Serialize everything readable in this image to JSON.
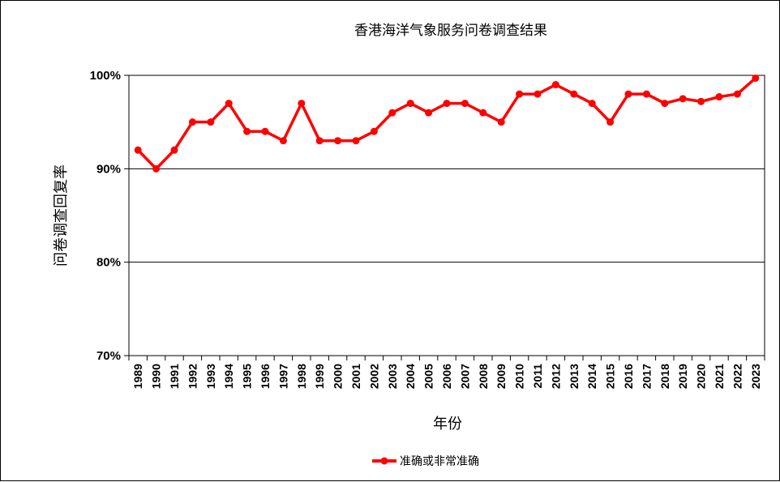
{
  "chart_data": {
    "type": "line",
    "title": "香港海洋气象服务问卷调查结果",
    "xlabel": "年份",
    "ylabel": "问卷调查回复率",
    "x": [
      "1989",
      "1990",
      "1991",
      "1992",
      "1993",
      "1994",
      "1995",
      "1996",
      "1997",
      "1998",
      "1999",
      "2000",
      "2001",
      "2002",
      "2003",
      "2004",
      "2005",
      "2006",
      "2007",
      "2008",
      "2009",
      "2010",
      "2011",
      "2012",
      "2013",
      "2014",
      "2015",
      "2016",
      "2017",
      "2018",
      "2019",
      "2020",
      "2021",
      "2022",
      "2023"
    ],
    "series": [
      {
        "name": "准确或非常准确",
        "color": "#ff0000",
        "values": [
          92,
          90,
          92,
          95,
          95,
          97,
          94,
          94,
          93,
          97,
          93,
          93,
          93,
          94,
          96,
          97,
          96,
          97,
          97,
          96,
          95,
          98,
          98,
          99,
          98,
          97,
          95,
          98,
          98,
          97,
          97.5,
          97.2,
          97.7,
          98,
          99.7
        ]
      }
    ],
    "ylim": [
      70,
      100
    ],
    "yticks": [
      70,
      80,
      90,
      100
    ],
    "ytick_labels": [
      "70%",
      "80%",
      "90%",
      "100%"
    ],
    "grid": "horizontal",
    "legend_position": "bottom"
  }
}
